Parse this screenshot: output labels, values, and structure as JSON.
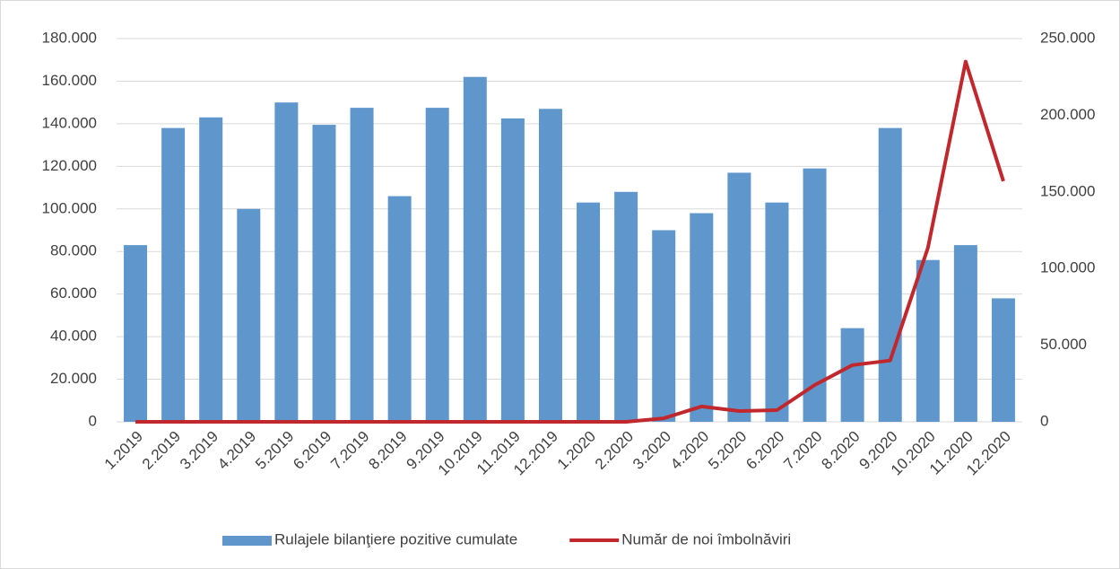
{
  "chart_data": {
    "type": "bar_line",
    "categories": [
      "1.2019",
      "2.2019",
      "3.2019",
      "4.2019",
      "5.2019",
      "6.2019",
      "7.2019",
      "8.2019",
      "9.2019",
      "10.2019",
      "11.2019",
      "12.2019",
      "1.2020",
      "2.2020",
      "3.2020",
      "4.2020",
      "5.2020",
      "6.2020",
      "7.2020",
      "8.2020",
      "9.2020",
      "10.2020",
      "11.2020",
      "12.2020"
    ],
    "series": [
      {
        "name": "Rulajele bilanţiere pozitive cumulate",
        "type": "bar",
        "color": "#5f97cd",
        "values": [
          83000,
          138000,
          143000,
          100000,
          150000,
          139500,
          147500,
          106000,
          147500,
          162000,
          142500,
          147000,
          103000,
          108000,
          90000,
          98000,
          117000,
          103000,
          119000,
          44000,
          138000,
          76000,
          83000,
          58000
        ]
      },
      {
        "name": "Număr de noi îmbolnăviri",
        "type": "line",
        "axis": "y2",
        "color": "#c0282d",
        "values": [
          0,
          0,
          0,
          0,
          0,
          0,
          0,
          0,
          0,
          0,
          0,
          0,
          0,
          0,
          2300,
          10000,
          7000,
          7600,
          24000,
          37000,
          40000,
          113500,
          235000,
          157000
        ]
      }
    ],
    "ylim": [
      0,
      180000
    ],
    "yticks": [
      0,
      {
        "value": 20000,
        "label": "20.000"
      },
      {
        "value": 40000,
        "label": "40.000"
      },
      {
        "value": 60000,
        "label": "60.000"
      },
      {
        "value": 80000,
        "label": "80.000"
      },
      {
        "value": 100000,
        "label": "100.000"
      },
      {
        "value": 120000,
        "label": "120.000"
      },
      {
        "value": 140000,
        "label": "140.000"
      },
      {
        "value": 160000,
        "label": "160.000"
      },
      {
        "value": 180000,
        "label": "180.000"
      }
    ],
    "y2lim": [
      0,
      250000
    ],
    "y2ticks": [
      0,
      {
        "value": 50000,
        "label": "50.000"
      },
      {
        "value": 100000,
        "label": "100.000"
      },
      {
        "value": 150000,
        "label": "150.000"
      },
      {
        "value": 200000,
        "label": "200.000"
      },
      {
        "value": 250000,
        "label": "250.000"
      }
    ],
    "grid": true,
    "legend": "bottom"
  }
}
